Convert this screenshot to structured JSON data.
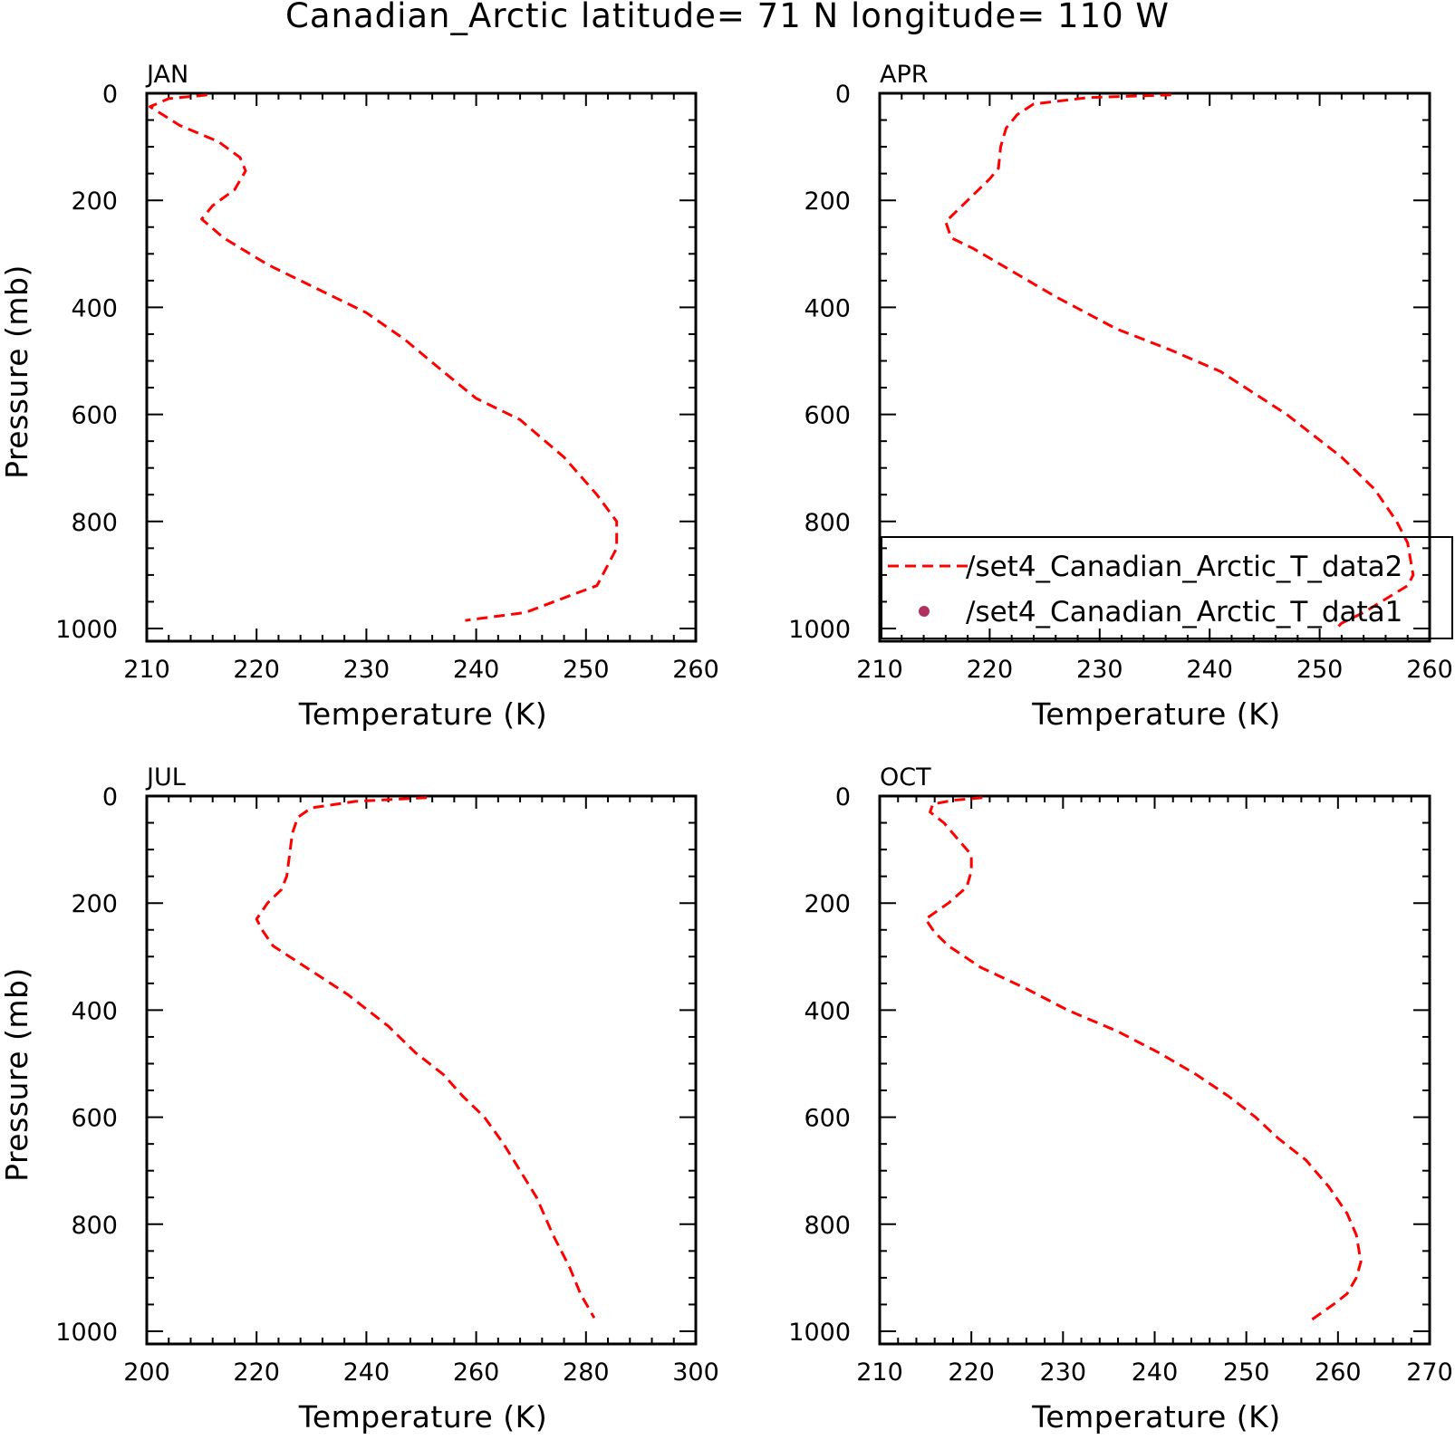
{
  "title": "Canadian_Arctic  latitude= 71 N longitude= 110 W",
  "colors": {
    "series_line": "#ff0000",
    "legend_marker": "#b03060",
    "axes": "#000000"
  },
  "legend": {
    "placement": "lower-right of APR panel",
    "entries": [
      {
        "label": "/set4_Canadian_Arctic_T_data2",
        "style": "dashed-line"
      },
      {
        "label": "/set4_Canadian_Arctic_T_data1",
        "style": "dot"
      }
    ]
  },
  "chart_data": [
    {
      "type": "line",
      "panel": "JAN",
      "xlabel": "Temperature (K)",
      "ylabel": "Pressure (mb)",
      "xlim": [
        210,
        260
      ],
      "ylim": [
        1000,
        0
      ],
      "x_ticks": [
        210,
        220,
        230,
        240,
        250,
        260
      ],
      "y_ticks": [
        0,
        200,
        400,
        600,
        800,
        1000
      ],
      "series": [
        {
          "x": [
            215.5,
            212,
            210.3,
            213,
            216.5,
            218.5,
            219,
            218,
            216,
            215,
            217,
            221,
            225,
            230,
            233.5,
            237,
            240,
            244,
            248,
            251,
            252.8,
            252.8,
            251,
            249,
            244.5,
            239
          ],
          "y": [
            3,
            10,
            25,
            60,
            90,
            120,
            145,
            180,
            210,
            235,
            270,
            320,
            360,
            410,
            460,
            520,
            570,
            610,
            680,
            750,
            800,
            850,
            920,
            935,
            970,
            985
          ]
        }
      ]
    },
    {
      "type": "line",
      "panel": "APR",
      "xlabel": "Temperature (K)",
      "ylabel": "",
      "xlim": [
        210,
        260
      ],
      "ylim": [
        1000,
        0
      ],
      "x_ticks": [
        210,
        220,
        230,
        240,
        250,
        260
      ],
      "y_ticks": [
        0,
        200,
        400,
        600,
        800,
        1000
      ],
      "series": [
        {
          "x": [
            236.5,
            229,
            224,
            222.5,
            221.5,
            221,
            220.8,
            220,
            218,
            216.5,
            216,
            216.5,
            218.5,
            221,
            226,
            231.5,
            236.5,
            241,
            247,
            252,
            255,
            257,
            258,
            258.5,
            258,
            256,
            254,
            252,
            251.5
          ],
          "y": [
            3,
            8,
            20,
            40,
            65,
            100,
            140,
            160,
            200,
            230,
            240,
            270,
            290,
            320,
            380,
            440,
            480,
            520,
            600,
            680,
            740,
            800,
            840,
            900,
            920,
            945,
            970,
            990,
            1000
          ]
        }
      ]
    },
    {
      "type": "line",
      "panel": "JUL",
      "xlabel": "Temperature (K)",
      "ylabel": "Pressure (mb)",
      "xlim": [
        200,
        300
      ],
      "ylim": [
        1000,
        0
      ],
      "x_ticks": [
        200,
        220,
        240,
        260,
        280,
        300
      ],
      "y_ticks": [
        0,
        200,
        400,
        600,
        800,
        1000
      ],
      "series": [
        {
          "x": [
            251,
            238,
            230,
            227.5,
            226.5,
            226,
            225.5,
            224.5,
            222,
            220,
            221,
            223,
            229,
            236.5,
            244,
            249,
            254,
            257.5,
            261.5,
            265,
            268,
            271,
            274,
            277,
            279,
            281.5
          ],
          "y": [
            3,
            10,
            22,
            40,
            70,
            110,
            150,
            175,
            200,
            230,
            250,
            280,
            320,
            370,
            430,
            480,
            520,
            560,
            600,
            650,
            700,
            750,
            820,
            880,
            930,
            975
          ]
        }
      ]
    },
    {
      "type": "line",
      "panel": "OCT",
      "xlabel": "Temperature (K)",
      "ylabel": "",
      "xlim": [
        210,
        270
      ],
      "ylim": [
        1000,
        0
      ],
      "x_ticks": [
        210,
        220,
        230,
        240,
        250,
        260,
        270
      ],
      "y_ticks": [
        0,
        200,
        400,
        600,
        800,
        1000
      ],
      "series": [
        {
          "x": [
            221.2,
            218,
            215.8,
            215.5,
            217,
            218.5,
            220,
            220,
            219.5,
            217.5,
            215,
            216,
            217.5,
            221,
            226,
            230.5,
            236,
            240.5,
            244.5,
            248,
            251,
            253.5,
            256.5,
            259,
            261,
            262,
            262.5,
            262,
            261,
            259.5,
            257
          ],
          "y": [
            3,
            8,
            15,
            30,
            50,
            80,
            110,
            140,
            170,
            200,
            230,
            255,
            280,
            320,
            360,
            400,
            440,
            480,
            520,
            560,
            600,
            640,
            680,
            730,
            780,
            820,
            870,
            900,
            930,
            950,
            980
          ]
        }
      ]
    }
  ]
}
